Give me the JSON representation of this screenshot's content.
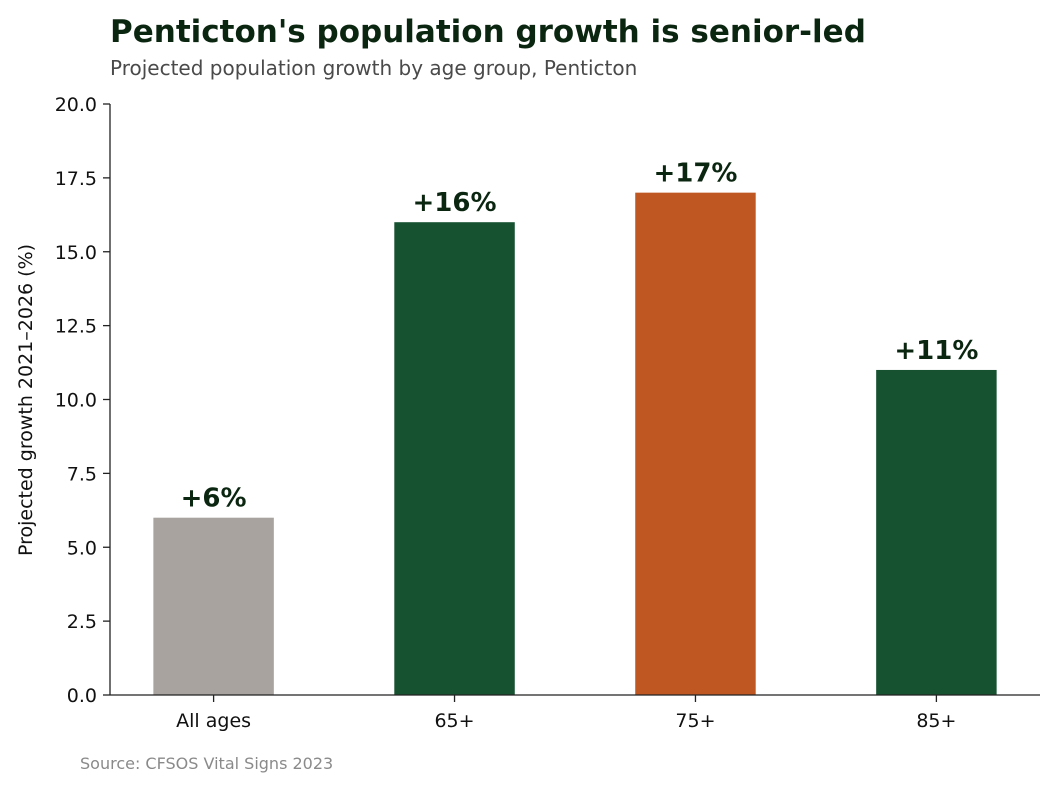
{
  "chart_data": {
    "type": "bar",
    "title": "Penticton's population growth is senior-led",
    "subtitle": "Projected population growth by age group, Penticton",
    "ylabel": "Projected growth 2021–2026 (%)",
    "xlabel": "",
    "categories": [
      "All ages",
      "65+",
      "75+",
      "85+"
    ],
    "values": [
      6,
      16,
      17,
      11
    ],
    "data_labels": [
      "+6%",
      "+16%",
      "+17%",
      "+11%"
    ],
    "colors": [
      "#a8a39e",
      "#165230",
      "#bf5722",
      "#165230"
    ],
    "ylim": [
      0,
      20
    ],
    "yticks": [
      0,
      2.5,
      5,
      7.5,
      10,
      12.5,
      15,
      17.5,
      20
    ],
    "ytick_labels": [
      "0.0",
      "2.5",
      "5.0",
      "7.5",
      "10.0",
      "12.5",
      "15.0",
      "17.5",
      "20.0"
    ],
    "grid": false,
    "legend": "none",
    "source": "Source: CFSOS Vital Signs 2023"
  }
}
